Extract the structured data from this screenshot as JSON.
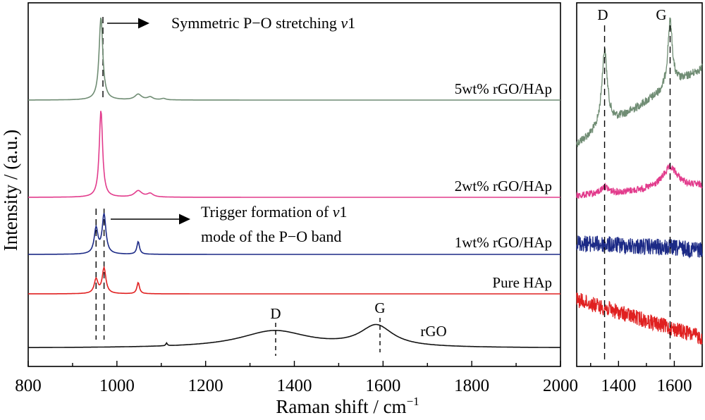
{
  "chart_data": [
    {
      "type": "line",
      "title": "",
      "xlabel": "Raman shift / cm",
      "xlabel_sup": "−1",
      "ylabel": "Intensity / (a.u.)",
      "xlim": [
        800,
        2000
      ],
      "xticks": [
        800,
        1000,
        1200,
        1400,
        1600,
        1800,
        2000
      ],
      "y_ticks_shown": false,
      "grid": false,
      "series": [
        {
          "name": "5wt% rGO/HAp",
          "color": "#6f8c73",
          "baseline": 0,
          "peaks": [
            {
              "x": 964,
              "height": 118,
              "width": 5
            },
            {
              "x": 1048,
              "height": 8,
              "width": 9
            },
            {
              "x": 1075,
              "height": 4,
              "width": 7
            },
            {
              "x": 1105,
              "height": 2,
              "width": 6
            }
          ]
        },
        {
          "name": "2wt% rGO/HAp",
          "color": "#e23b8c",
          "baseline": 0,
          "peaks": [
            {
              "x": 964,
              "height": 124,
              "width": 4.5
            },
            {
              "x": 1048,
              "height": 9,
              "width": 10
            },
            {
              "x": 1075,
              "height": 5,
              "width": 8
            }
          ]
        },
        {
          "name": "1wt% rGO/HAp",
          "color": "#1c2a86",
          "baseline": 0,
          "peaks": [
            {
              "x": 953,
              "height": 36,
              "width": 5
            },
            {
              "x": 971,
              "height": 56,
              "width": 5
            },
            {
              "x": 1048,
              "height": 18,
              "width": 3.5
            }
          ]
        },
        {
          "name": "Pure HAp",
          "color": "#e02020",
          "baseline": 0,
          "peaks": [
            {
              "x": 953,
              "height": 20,
              "width": 5
            },
            {
              "x": 971,
              "height": 36,
              "width": 5
            },
            {
              "x": 1048,
              "height": 16,
              "width": 3.5
            }
          ]
        },
        {
          "name": "rGO",
          "color": "#111111",
          "baseline": 0,
          "peaks": [
            {
              "x": 1355,
              "height": 24,
              "width": 95
            },
            {
              "x": 1585,
              "height": 30,
              "width": 45
            },
            {
              "x": 1112,
              "height": 4,
              "width": 2
            }
          ]
        }
      ],
      "reference_lines_x": [
        953,
        971
      ],
      "annotations": [
        {
          "text": "Symmetric P−O stretching ",
          "italic": "v",
          "suffix": "1"
        },
        {
          "text": "Trigger formation of ",
          "italic": "v",
          "suffix": "1"
        },
        {
          "text": "mode of the P−O band"
        }
      ],
      "peak_labels": [
        {
          "text": "D",
          "x": 1355
        },
        {
          "text": "G",
          "x": 1590
        }
      ]
    },
    {
      "type": "line",
      "title": "",
      "xlim": [
        1250,
        1700
      ],
      "xticks": [
        1400,
        1600
      ],
      "y_ticks_shown": false,
      "grid": false,
      "reference_lines_x": [
        1350,
        1585
      ],
      "peak_labels": [
        {
          "text": "D",
          "x": 1350
        },
        {
          "text": "G",
          "x": 1585
        }
      ],
      "series": [
        {
          "name": "5wt% rGO/HAp",
          "color": "#6f8c73"
        },
        {
          "name": "2wt% rGO/HAp",
          "color": "#e23b8c"
        },
        {
          "name": "1wt% rGO/HAp",
          "color": "#1c2a86"
        },
        {
          "name": "Pure HAp",
          "color": "#e02020"
        }
      ]
    }
  ]
}
